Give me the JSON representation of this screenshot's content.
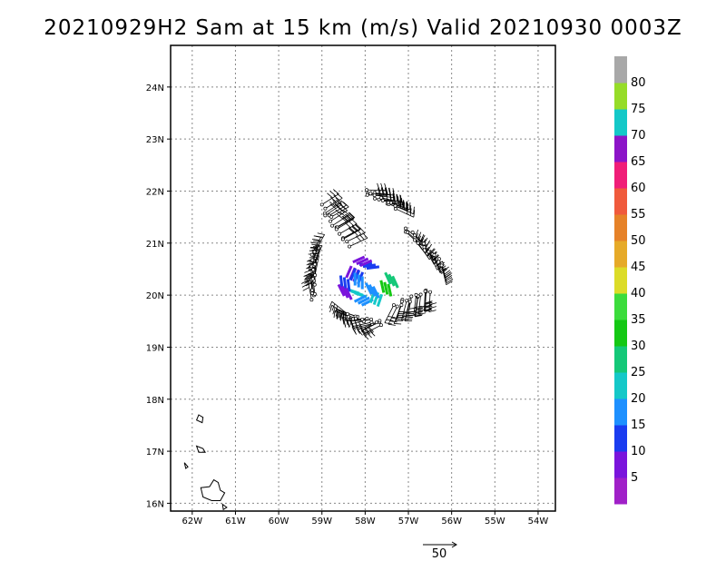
{
  "title": "20210929H2 Sam at 15 km (m/s) Valid 20210930 0003Z",
  "chart_data": {
    "type": "wind-barb-map",
    "title": "20210929H2 Sam at 15 km (m/s) Valid 20210930 0003Z",
    "xlim": [
      -62.5,
      -53.6
    ],
    "ylim": [
      15.85,
      24.8
    ],
    "x_ticks": [
      {
        "value": -62,
        "label": "62W"
      },
      {
        "value": -61,
        "label": "61W"
      },
      {
        "value": -60,
        "label": "60W"
      },
      {
        "value": -59,
        "label": "59W"
      },
      {
        "value": -58,
        "label": "58W"
      },
      {
        "value": -57,
        "label": "57W"
      },
      {
        "value": -56,
        "label": "56W"
      },
      {
        "value": -55,
        "label": "55W"
      },
      {
        "value": -54,
        "label": "54W"
      }
    ],
    "y_ticks": [
      {
        "value": 16,
        "label": "16N"
      },
      {
        "value": 17,
        "label": "17N"
      },
      {
        "value": 18,
        "label": "18N"
      },
      {
        "value": 19,
        "label": "19N"
      },
      {
        "value": 20,
        "label": "20N"
      },
      {
        "value": 21,
        "label": "21N"
      },
      {
        "value": 22,
        "label": "22N"
      },
      {
        "value": 23,
        "label": "23N"
      },
      {
        "value": 24,
        "label": "24N"
      }
    ],
    "grid": true,
    "colorbar": {
      "labels": [
        "5",
        "10",
        "15",
        "20",
        "25",
        "30",
        "35",
        "40",
        "45",
        "50",
        "55",
        "60",
        "65",
        "70",
        "75",
        "80"
      ],
      "colors": [
        "#a020c8",
        "#7a14dc",
        "#1a3cf0",
        "#1e90ff",
        "#14c8c8",
        "#14c878",
        "#14c814",
        "#3cdc3c",
        "#dcdc28",
        "#e6aa28",
        "#e68228",
        "#f05a3c",
        "#f01e78",
        "#8c14c8",
        "#14c8c8",
        "#96dc28",
        "#a8a8a8"
      ]
    },
    "reference_vector": {
      "label": "50"
    },
    "center": [
      -58.0,
      20.15
    ],
    "flight_legs": [
      {
        "from": [
          -59.0,
          21.7
        ],
        "to": [
          -58.4,
          20.95
        ]
      },
      {
        "from": [
          -58.0,
          22.0
        ],
        "to": [
          -57.3,
          21.7
        ]
      },
      {
        "from": [
          -57.1,
          21.3
        ],
        "to": [
          -56.2,
          20.6
        ]
      },
      {
        "from": [
          -56.5,
          20.1
        ],
        "to": [
          -57.3,
          19.8
        ]
      },
      {
        "from": [
          -57.6,
          19.45
        ],
        "to": [
          -58.4,
          19.6
        ]
      },
      {
        "from": [
          -59.2,
          19.9
        ],
        "to": [
          -59.2,
          20.8
        ]
      }
    ],
    "inner_core": [
      {
        "lon": -58.35,
        "lat": 20.3,
        "speed": 10
      },
      {
        "lon": -58.25,
        "lat": 20.25,
        "speed": 15
      },
      {
        "lon": -58.15,
        "lat": 20.15,
        "speed": 20
      },
      {
        "lon": -58.05,
        "lat": 20.0,
        "speed": 25
      },
      {
        "lon": -57.9,
        "lat": 19.95,
        "speed": 20
      },
      {
        "lon": -57.7,
        "lat": 20.05,
        "speed": 25
      },
      {
        "lon": -57.55,
        "lat": 20.25,
        "speed": 35
      },
      {
        "lon": -57.45,
        "lat": 20.4,
        "speed": 30
      },
      {
        "lon": -58.45,
        "lat": 20.1,
        "speed": 15
      },
      {
        "lon": -58.4,
        "lat": 19.95,
        "speed": 10
      },
      {
        "lon": -58.05,
        "lat": 20.55,
        "speed": 15
      },
      {
        "lon": -58.2,
        "lat": 20.6,
        "speed": 10
      },
      {
        "lon": -57.9,
        "lat": 20.2,
        "speed": 20
      }
    ],
    "coastlines": [
      {
        "name": "island-1",
        "points": [
          [
            -61.85,
            17.7
          ],
          [
            -61.75,
            17.65
          ],
          [
            -61.77,
            17.55
          ],
          [
            -61.9,
            17.6
          ]
        ]
      },
      {
        "name": "island-2",
        "points": [
          [
            -61.9,
            17.1
          ],
          [
            -61.75,
            17.05
          ],
          [
            -61.7,
            16.98
          ],
          [
            -61.85,
            16.98
          ]
        ]
      },
      {
        "name": "island-3",
        "points": [
          [
            -62.18,
            16.78
          ],
          [
            -62.1,
            16.7
          ],
          [
            -62.15,
            16.67
          ]
        ]
      },
      {
        "name": "island-4",
        "points": [
          [
            -61.8,
            16.3
          ],
          [
            -61.6,
            16.32
          ],
          [
            -61.5,
            16.45
          ],
          [
            -61.4,
            16.4
          ],
          [
            -61.35,
            16.25
          ],
          [
            -61.25,
            16.2
          ],
          [
            -61.35,
            16.05
          ],
          [
            -61.55,
            16.05
          ],
          [
            -61.75,
            16.12
          ]
        ]
      },
      {
        "name": "island-5",
        "points": [
          [
            -61.3,
            15.98
          ],
          [
            -61.2,
            15.92
          ],
          [
            -61.28,
            15.88
          ]
        ]
      }
    ]
  }
}
